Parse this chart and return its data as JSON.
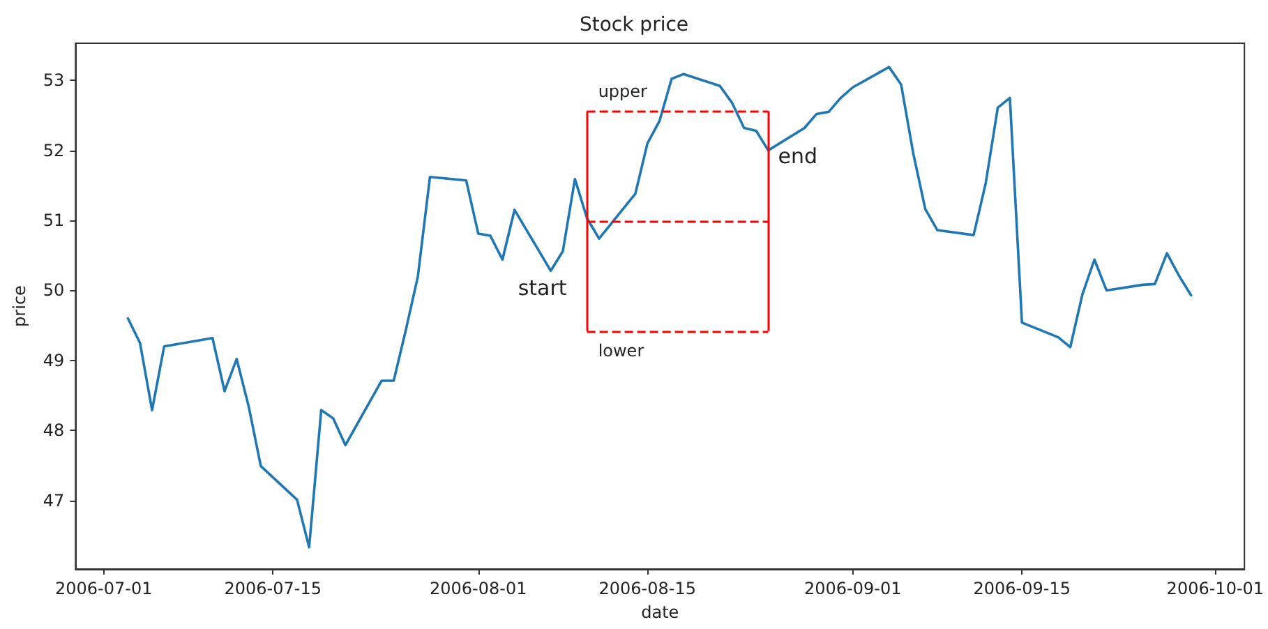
{
  "chart_data": {
    "type": "line",
    "title": "Stock price",
    "xlabel": "date",
    "ylabel": "price",
    "x": [
      "2006-07-03",
      "2006-07-04",
      "2006-07-05",
      "2006-07-06",
      "2006-07-10",
      "2006-07-11",
      "2006-07-12",
      "2006-07-13",
      "2006-07-14",
      "2006-07-17",
      "2006-07-18",
      "2006-07-19",
      "2006-07-20",
      "2006-07-21",
      "2006-07-24",
      "2006-07-25",
      "2006-07-26",
      "2006-07-27",
      "2006-07-28",
      "2006-07-31",
      "2006-08-01",
      "2006-08-02",
      "2006-08-03",
      "2006-08-04",
      "2006-08-07",
      "2006-08-08",
      "2006-08-09",
      "2006-08-10",
      "2006-08-11",
      "2006-08-14",
      "2006-08-15",
      "2006-08-16",
      "2006-08-17",
      "2006-08-18",
      "2006-08-21",
      "2006-08-22",
      "2006-08-23",
      "2006-08-24",
      "2006-08-25",
      "2006-08-28",
      "2006-08-29",
      "2006-08-30",
      "2006-08-31",
      "2006-09-01",
      "2006-09-04",
      "2006-09-05",
      "2006-09-06",
      "2006-09-07",
      "2006-09-08",
      "2006-09-11",
      "2006-09-12",
      "2006-09-13",
      "2006-09-14",
      "2006-09-15",
      "2006-09-18",
      "2006-09-19",
      "2006-09-20",
      "2006-09-21",
      "2006-09-22",
      "2006-09-25",
      "2006-09-26",
      "2006-09-27",
      "2006-09-28",
      "2006-09-29"
    ],
    "series": [
      {
        "color": "#1f77b4",
        "values": [
          49.6,
          49.25,
          48.29,
          49.2,
          49.32,
          48.56,
          49.02,
          48.34,
          47.49,
          47.01,
          46.33,
          48.29,
          48.17,
          47.79,
          48.71,
          48.71,
          49.43,
          50.2,
          51.62,
          51.57,
          50.81,
          50.78,
          50.44,
          51.15,
          50.28,
          50.56,
          51.59,
          51.03,
          50.74,
          51.38,
          52.1,
          52.42,
          53.02,
          53.09,
          52.92,
          52.68,
          52.32,
          52.28,
          52.0,
          52.32,
          52.52,
          52.55,
          52.75,
          52.9,
          53.19,
          52.94,
          51.96,
          51.16,
          50.86,
          50.79,
          51.53,
          52.61,
          52.75,
          49.54,
          49.33,
          49.19,
          49.94,
          50.44,
          50.0,
          50.08,
          50.09,
          50.53,
          50.21,
          49.93
        ]
      }
    ],
    "xlim": [
      "2006-06-28T16:00",
      "2006-10-03T10:00"
    ],
    "xticks": [
      "2006-07-01",
      "2006-07-15",
      "2006-08-01",
      "2006-08-15",
      "2006-09-01",
      "2006-09-15",
      "2006-10-01"
    ],
    "ylim": [
      46.02,
      53.53
    ],
    "yticks": [
      47,
      48,
      49,
      50,
      51,
      52,
      53
    ],
    "ref_lines": [
      {
        "axis": "x",
        "value": "2006-08-10",
        "color": "#ff0000",
        "line_style": "solid"
      },
      {
        "axis": "x",
        "value": "2006-08-25",
        "color": "#ff0000",
        "line_style": "solid"
      },
      {
        "axis": "y",
        "value": 52.56,
        "label": "upper",
        "color": "#ff0000",
        "line_style": "dashed"
      },
      {
        "axis": "y",
        "value": 50.99,
        "color": "#ff0000",
        "line_style": "dashed"
      },
      {
        "axis": "y",
        "value": 49.42,
        "label": "lower",
        "color": "#ff0000",
        "line_style": "dashed"
      }
    ],
    "annotations": [
      {
        "text": "start",
        "x": "2006-08-07",
        "y": 50.28
      },
      {
        "text": "end",
        "x": "2006-08-25",
        "y": 52.0
      }
    ],
    "grid": false,
    "marker": "none",
    "line_style": "solid"
  }
}
